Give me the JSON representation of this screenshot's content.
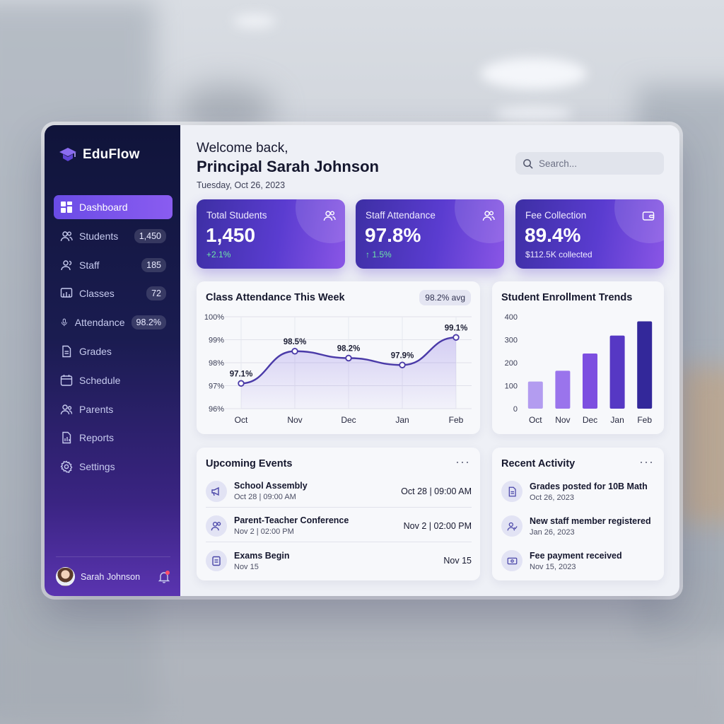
{
  "brand": {
    "name": "EduFlow"
  },
  "sidebar": {
    "items": [
      {
        "label": "Dashboard",
        "icon": "grid-icon",
        "badge": null,
        "active": true
      },
      {
        "label": "Students",
        "icon": "users-icon",
        "badge": "1,450"
      },
      {
        "label": "Staff",
        "icon": "user-group-icon",
        "badge": "185"
      },
      {
        "label": "Classes",
        "icon": "classroom-icon",
        "badge": "72"
      },
      {
        "label": "Attendance",
        "icon": "microphone-icon",
        "badge": "98.2%"
      },
      {
        "label": "Grades",
        "icon": "document-icon",
        "badge": null
      },
      {
        "label": "Schedule",
        "icon": "calendar-icon",
        "badge": null
      },
      {
        "label": "Parents",
        "icon": "parents-icon",
        "badge": null
      },
      {
        "label": "Reports",
        "icon": "report-icon",
        "badge": null
      },
      {
        "label": "Settings",
        "icon": "gear-icon",
        "badge": null
      }
    ],
    "user": {
      "name": "Sarah Johnson"
    }
  },
  "header": {
    "greeting": "Welcome back,",
    "name": "Principal Sarah Johnson",
    "date": "Tuesday, Oct 26, 2023"
  },
  "search": {
    "placeholder": "Search..."
  },
  "stats": [
    {
      "title": "Total Students",
      "value": "1,450",
      "sub": "+2.1%",
      "icon": "users-icon"
    },
    {
      "title": "Staff Attendance",
      "value": "97.8%",
      "sub": "↑ 1.5%",
      "icon": "user-check-icon"
    },
    {
      "title": "Fee Collection",
      "value": "89.4%",
      "sub": "$112.5K collected",
      "icon": "wallet-icon"
    }
  ],
  "attendance_card": {
    "title": "Class Attendance This Week",
    "avg": "98.2% avg"
  },
  "enrollment_card": {
    "title": "Student Enrollment Trends"
  },
  "chart_data": [
    {
      "type": "line",
      "title": "Class Attendance This Week",
      "categories": [
        "Oct",
        "Nov",
        "Dec",
        "Jan",
        "Feb"
      ],
      "values": [
        97.1,
        98.5,
        98.2,
        97.9,
        99.1
      ],
      "labels": [
        "97.1%",
        "98.5%",
        "98.2%",
        "97.9%",
        "99.1%"
      ],
      "ylim": [
        96,
        100
      ],
      "yticks": [
        "96%",
        "97%",
        "98%",
        "99%",
        "100%"
      ],
      "grid": true
    },
    {
      "type": "bar",
      "title": "Student Enrollment Trends",
      "categories": [
        "Oct",
        "Nov",
        "Dec",
        "Jan",
        "Feb"
      ],
      "values": [
        118,
        165,
        240,
        318,
        380
      ],
      "ylim": [
        0,
        400
      ],
      "yticks": [
        "0",
        "100",
        "200",
        "300",
        "400"
      ],
      "colors": [
        "#b39cf0",
        "#9a74ec",
        "#7d4fe0",
        "#5638c4",
        "#33289a"
      ]
    }
  ],
  "events": {
    "title": "Upcoming Events",
    "items": [
      {
        "title": "School Assembly",
        "sub": "Oct 28 | 09:00 AM",
        "right": "Oct 28 | 09:00 AM",
        "icon": "megaphone-icon"
      },
      {
        "title": "Parent-Teacher Conference",
        "sub": "Nov 2 | 02:00 PM",
        "right": "Nov 2 | 02:00 PM",
        "icon": "people-icon"
      },
      {
        "title": "Exams Begin",
        "sub": "Nov 15",
        "right": "Nov 15",
        "icon": "clipboard-icon"
      }
    ]
  },
  "activity": {
    "title": "Recent Activity",
    "items": [
      {
        "title": "Grades posted for 10B Math",
        "sub": "Oct 26, 2023",
        "icon": "file-icon"
      },
      {
        "title": "New staff member registered",
        "sub": "Jan 26, 2023",
        "icon": "user-add-icon"
      },
      {
        "title": "Fee payment received",
        "sub": "Nov 15, 2023",
        "icon": "money-icon"
      }
    ]
  }
}
